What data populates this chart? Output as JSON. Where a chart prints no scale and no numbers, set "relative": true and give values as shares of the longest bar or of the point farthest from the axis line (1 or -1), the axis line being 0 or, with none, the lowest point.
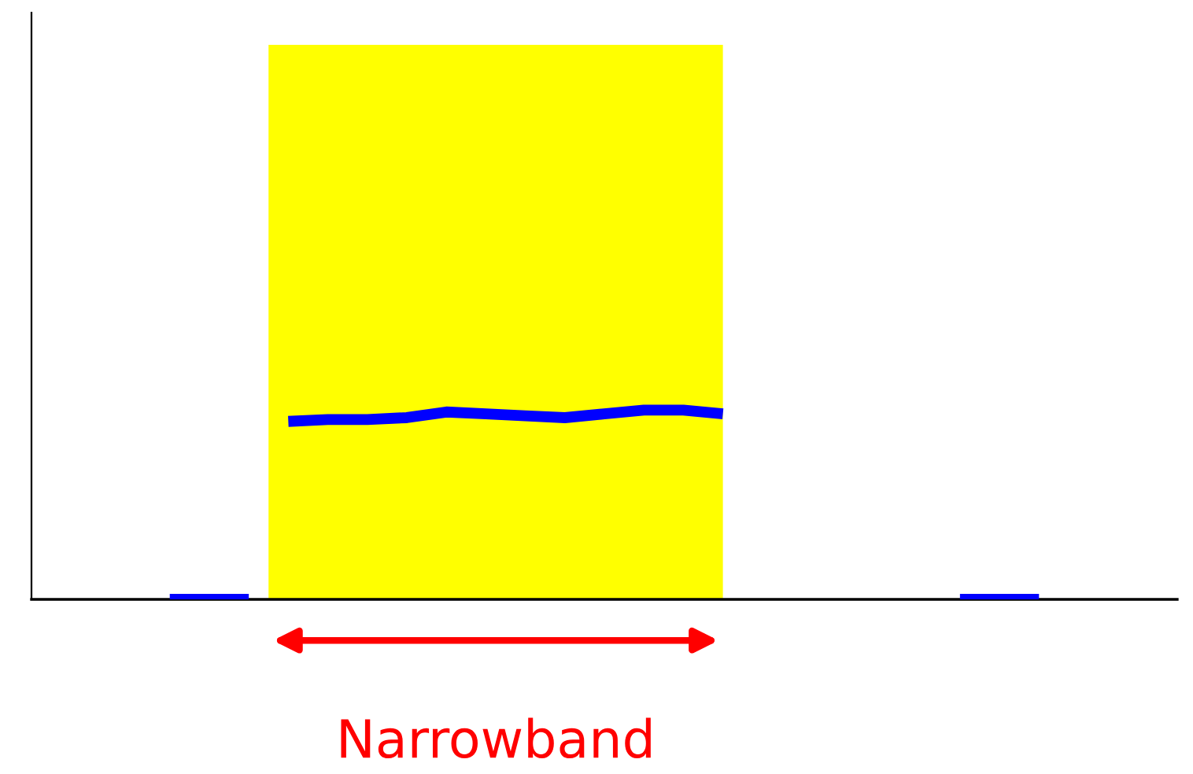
{
  "chart_data": {
    "type": "line",
    "relative": true,
    "categories": [
      null,
      null,
      null,
      null,
      null,
      null,
      null,
      null,
      null,
      null,
      null,
      null,
      null,
      null,
      null,
      null,
      null,
      null,
      null,
      null,
      null,
      null,
      null,
      null,
      null,
      null,
      null,
      null,
      null
    ],
    "series": [
      {
        "color": "#0000ff",
        "values": [
          null,
          null,
          null,
          0,
          0,
          0,
          null,
          null,
          null,
          null,
          null,
          null,
          null,
          null,
          null,
          null,
          null,
          null,
          null,
          null,
          null,
          null,
          null,
          null,
          null,
          null,
          null,
          null,
          null
        ]
      },
      {
        "color": "#0000ff",
        "values": [
          null,
          null,
          null,
          null,
          null,
          null,
          0.94,
          0.95,
          0.95,
          0.96,
          0.99,
          0.98,
          0.97,
          0.96,
          0.98,
          1,
          1,
          0.98,
          null,
          null,
          null,
          null,
          null,
          null,
          null,
          null,
          null,
          null,
          null
        ]
      },
      {
        "color": "#0000ff",
        "values": [
          null,
          null,
          null,
          null,
          null,
          null,
          null,
          null,
          null,
          null,
          null,
          null,
          null,
          null,
          null,
          null,
          null,
          null,
          null,
          null,
          null,
          null,
          null,
          0,
          0,
          0,
          null,
          null,
          null
        ]
      }
    ],
    "annotations": [
      "Narrowband"
    ]
  }
}
